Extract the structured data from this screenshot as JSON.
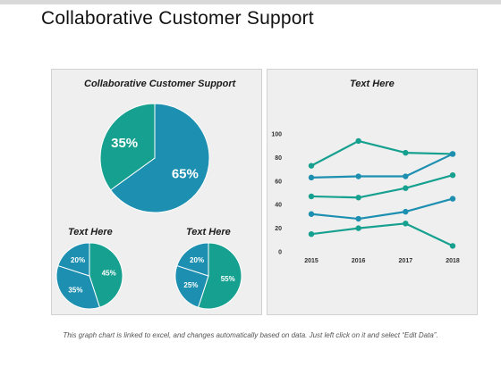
{
  "page": {
    "title": "Collaborative Customer Support",
    "footnote": "This graph chart is linked to excel, and changes automatically based on data. Just left click on it and select “Edit Data”."
  },
  "colors": {
    "teal": "#16a08f",
    "blue": "#1d8fb1",
    "panel_bg": "#efefef"
  },
  "chart_data": [
    {
      "type": "pie",
      "title": "Collaborative Customer Support",
      "slices": [
        {
          "label": "65%",
          "value": 65,
          "color": "#1d8fb1"
        },
        {
          "label": "35%",
          "value": 35,
          "color": "#16a08f"
        }
      ]
    },
    {
      "type": "pie",
      "title": "Text Here",
      "slices": [
        {
          "label": "45%",
          "value": 45,
          "color": "#16a08f"
        },
        {
          "label": "35%",
          "value": 35,
          "color": "#1d8fb1"
        },
        {
          "label": "20%",
          "value": 20,
          "color": "#1d8fb1"
        }
      ]
    },
    {
      "type": "pie",
      "title": "Text Here",
      "slices": [
        {
          "label": "55%",
          "value": 55,
          "color": "#16a08f"
        },
        {
          "label": "25%",
          "value": 25,
          "color": "#1d8fb1"
        },
        {
          "label": "20%",
          "value": 20,
          "color": "#1d8fb1"
        }
      ]
    },
    {
      "type": "line",
      "title": "Text Here",
      "categories": [
        "2015",
        "2016",
        "2017",
        "2018"
      ],
      "ylim": [
        0,
        100
      ],
      "yticks": [
        "0",
        "20",
        "40",
        "60",
        "80",
        "100"
      ],
      "grid": false,
      "series": [
        {
          "values": [
            73,
            94,
            84,
            83
          ],
          "color": "#16a08f"
        },
        {
          "values": [
            63,
            64,
            64,
            83
          ],
          "color": "#1d8fb1"
        },
        {
          "values": [
            47,
            46,
            54,
            65
          ],
          "color": "#16a08f"
        },
        {
          "values": [
            32,
            28,
            34,
            45
          ],
          "color": "#1d8fb1"
        },
        {
          "values": [
            15,
            20,
            24,
            5
          ],
          "color": "#16a08f"
        }
      ]
    }
  ]
}
